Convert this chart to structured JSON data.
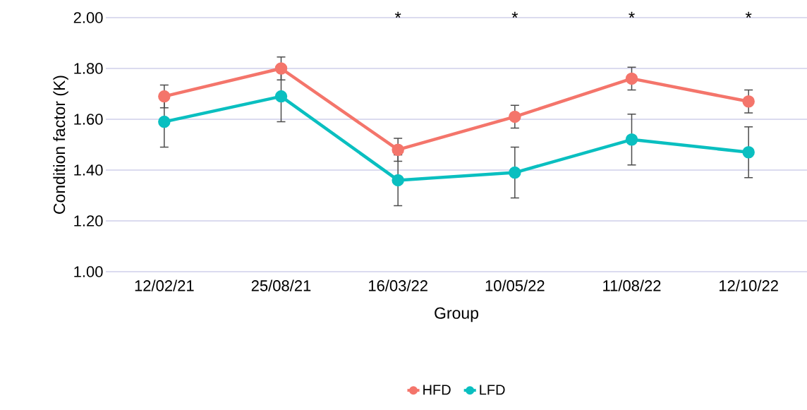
{
  "chart_data": {
    "type": "line",
    "xlabel": "Group",
    "ylabel": "Condition factor (K)",
    "categories": [
      "12/02/21",
      "25/08/21",
      "16/03/22",
      "10/05/22",
      "11/08/22",
      "12/10/22"
    ],
    "series": [
      {
        "name": "HFD",
        "color": "#f4756b",
        "values": [
          1.69,
          1.8,
          1.48,
          1.61,
          1.76,
          1.67
        ],
        "errors": [
          0.045,
          0.045,
          0.045,
          0.045,
          0.045,
          0.045
        ]
      },
      {
        "name": "LFD",
        "color": "#0abfc0",
        "values": [
          1.59,
          1.69,
          1.36,
          1.39,
          1.52,
          1.47
        ],
        "errors": [
          0.1,
          0.1,
          0.1,
          0.1,
          0.1,
          0.1
        ]
      }
    ],
    "ylim": [
      1.0,
      2.0
    ],
    "yticks": [
      {
        "value": 1.0,
        "label": "1.00"
      },
      {
        "value": 1.2,
        "label": "1.20"
      },
      {
        "value": 1.4,
        "label": "1.40"
      },
      {
        "value": 1.6,
        "label": "1.60"
      },
      {
        "value": 1.8,
        "label": "1.80"
      },
      {
        "value": 2.0,
        "label": "2.00"
      }
    ],
    "grid": "y",
    "legend": "bottom",
    "marker": "circle",
    "line_style": "solid",
    "annotations": [
      "*",
      "*",
      "*",
      "*"
    ]
  }
}
